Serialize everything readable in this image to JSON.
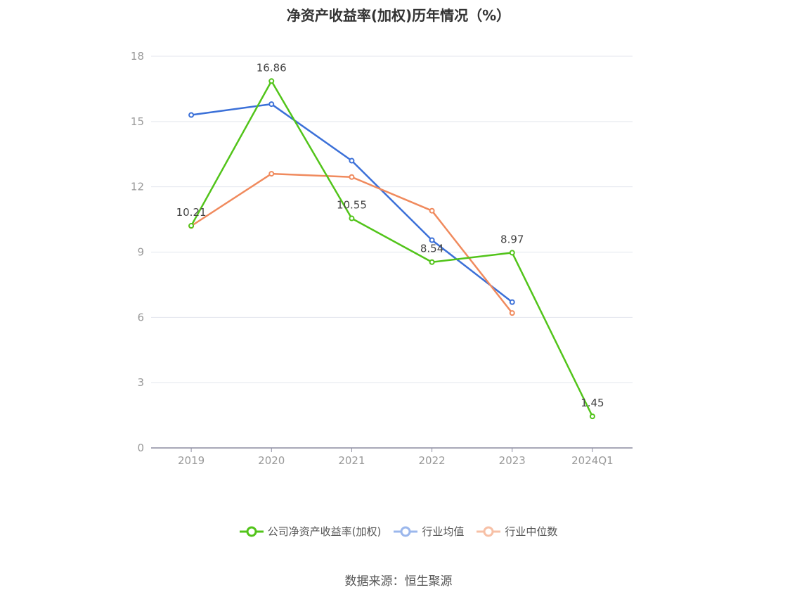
{
  "title": "净资产收益率(加权)历年情况（%）",
  "source": "数据来源：恒生聚源",
  "chart_data": {
    "type": "line",
    "categories": [
      "2019",
      "2020",
      "2021",
      "2022",
      "2023",
      "2024Q1"
    ],
    "ylim": [
      0,
      18
    ],
    "yticks": [
      0,
      3,
      6,
      9,
      12,
      15,
      18
    ],
    "grid": true,
    "legend_position": "bottom",
    "series": [
      {
        "name": "公司净资产收益率(加权)",
        "color": "#52c41a",
        "values": [
          10.21,
          16.86,
          10.55,
          8.54,
          8.97,
          1.45
        ],
        "show_labels": true
      },
      {
        "name": "行业均值",
        "color": "#3b70d8",
        "values": [
          15.3,
          15.8,
          13.2,
          9.55,
          6.7,
          null
        ],
        "show_labels": false
      },
      {
        "name": "行业中位数",
        "color": "#f08a5d",
        "values": [
          10.2,
          12.6,
          12.45,
          10.9,
          6.2,
          null
        ],
        "show_labels": false
      }
    ],
    "data_labels": [
      "10.21",
      "16.86",
      "10.55",
      "8.54",
      "8.97",
      "1.45"
    ]
  },
  "legend_icons": {
    "company": "circle-line-marker",
    "avg": "circle-line-marker",
    "median": "circle-line-marker"
  }
}
